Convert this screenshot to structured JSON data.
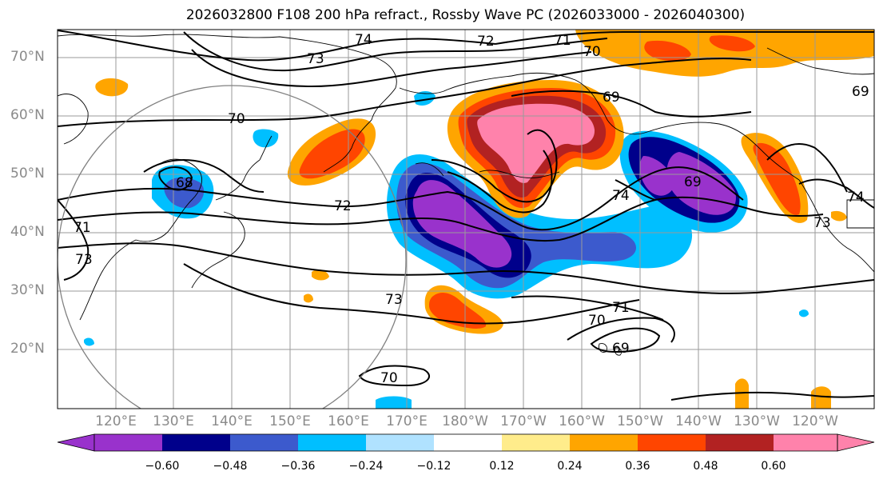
{
  "title": "2026032800 F108 200 hPa refract., Rossby Wave PC (2026033000 - 2026040300)",
  "lat_labels": [
    "70°N",
    "60°N",
    "50°N",
    "40°N",
    "30°N",
    "20°N"
  ],
  "lon_labels": [
    "120°E",
    "130°E",
    "140°E",
    "150°E",
    "160°E",
    "170°E",
    "180°W",
    "170°W",
    "160°W",
    "150°W",
    "140°W",
    "130°W",
    "120°W"
  ],
  "contour_labels": [
    "74",
    "72",
    "71",
    "70",
    "73",
    "69",
    "70",
    "69",
    "68",
    "72",
    "74",
    "74",
    "73",
    "71",
    "73",
    "73",
    "71",
    "70",
    "69",
    "70",
    "69"
  ],
  "colorbar": {
    "ticks": [
      "−0.60",
      "−0.48",
      "−0.36",
      "−0.24",
      "−0.12",
      "0.12",
      "0.24",
      "0.36",
      "0.48",
      "0.60"
    ],
    "colors": [
      "#9932cc",
      "#00008b",
      "#3c5acd",
      "#00bfff",
      "#b0e2ff",
      "#ffffff",
      "#ffec8b",
      "#ffa500",
      "#ff4500",
      "#b22222",
      "#ff82ab"
    ]
  }
}
